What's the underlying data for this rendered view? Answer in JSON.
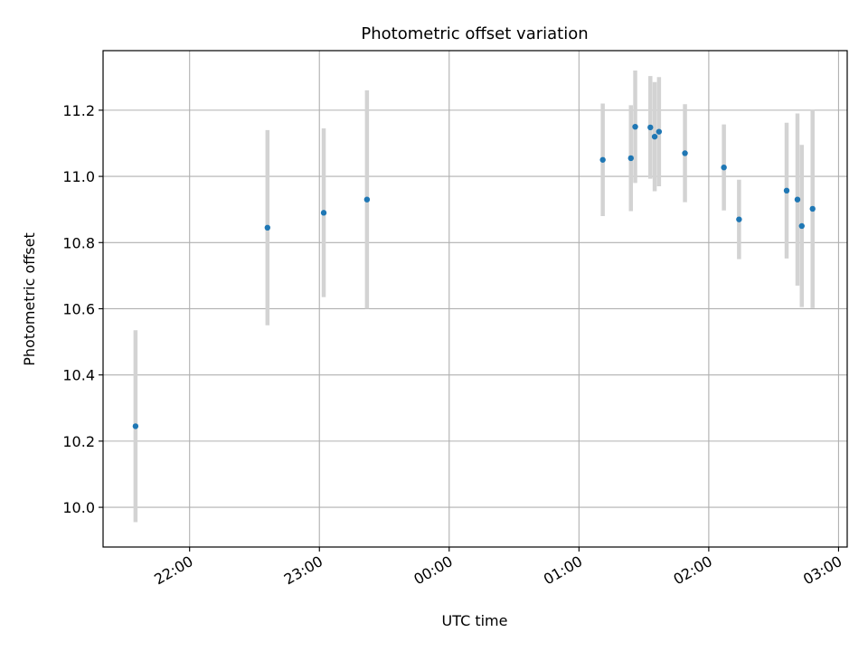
{
  "chart_data": {
    "type": "scatter",
    "title": "Photometric offset variation",
    "xlabel": "UTC time",
    "ylabel": "Photometric offset",
    "x_ticks": [
      "22:00",
      "23:00",
      "00:00",
      "01:00",
      "02:00",
      "03:00"
    ],
    "y_ticks": [
      "10.0",
      "10.2",
      "10.4",
      "10.6",
      "10.8",
      "11.0",
      "11.2"
    ],
    "xlim": [
      "21:20",
      "03:04"
    ],
    "ylim": [
      9.88,
      11.38
    ],
    "grid": true,
    "point_color": "#1f77b4",
    "errorbar_color": "#d3d3d3",
    "points": [
      {
        "x": "21:35",
        "y": 10.245,
        "yerr": 0.29
      },
      {
        "x": "22:36",
        "y": 10.845,
        "yerr": 0.295
      },
      {
        "x": "23:02",
        "y": 10.89,
        "yerr": 0.255
      },
      {
        "x": "23:22",
        "y": 10.93,
        "yerr": 0.33
      },
      {
        "x": "01:11",
        "y": 11.05,
        "yerr": 0.17
      },
      {
        "x": "01:24",
        "y": 11.055,
        "yerr": 0.16
      },
      {
        "x": "01:26",
        "y": 11.15,
        "yerr": 0.17
      },
      {
        "x": "01:33",
        "y": 11.148,
        "yerr": 0.155
      },
      {
        "x": "01:35",
        "y": 11.12,
        "yerr": 0.165
      },
      {
        "x": "01:37",
        "y": 11.135,
        "yerr": 0.165
      },
      {
        "x": "01:49",
        "y": 11.07,
        "yerr": 0.148
      },
      {
        "x": "02:07",
        "y": 11.027,
        "yerr": 0.13
      },
      {
        "x": "02:14",
        "y": 10.87,
        "yerr": 0.12
      },
      {
        "x": "02:36",
        "y": 10.957,
        "yerr": 0.205
      },
      {
        "x": "02:41",
        "y": 10.93,
        "yerr": 0.26
      },
      {
        "x": "02:43",
        "y": 10.85,
        "yerr": 0.245
      },
      {
        "x": "02:48",
        "y": 10.902,
        "yerr": 0.3
      }
    ]
  }
}
